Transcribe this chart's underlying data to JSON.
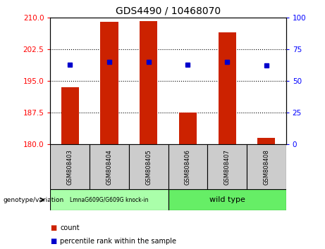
{
  "title": "GDS4490 / 10468070",
  "samples": [
    "GSM808403",
    "GSM808404",
    "GSM808405",
    "GSM808406",
    "GSM808407",
    "GSM808408"
  ],
  "counts": [
    193.5,
    209.0,
    209.2,
    187.5,
    206.5,
    181.5
  ],
  "percentile_ranks": [
    63,
    65,
    65,
    63,
    65,
    62
  ],
  "ylim_left": [
    180,
    210
  ],
  "ylim_right": [
    0,
    100
  ],
  "yticks_left": [
    180,
    187.5,
    195,
    202.5,
    210
  ],
  "yticks_right": [
    0,
    25,
    50,
    75,
    100
  ],
  "bar_color": "#cc2200",
  "dot_color": "#0000cc",
  "background_color": "#ffffff",
  "knock_in_samples": [
    0,
    1,
    2
  ],
  "wild_type_samples": [
    3,
    4,
    5
  ],
  "knock_in_label": "LmnaG609G/G609G knock-in",
  "wild_type_label": "wild type",
  "genotype_label": "genotype/variation",
  "legend_count": "count",
  "legend_percentile": "percentile rank within the sample",
  "knock_in_color": "#aaffaa",
  "wild_type_color": "#66ee66",
  "sample_bg_color": "#cccccc"
}
